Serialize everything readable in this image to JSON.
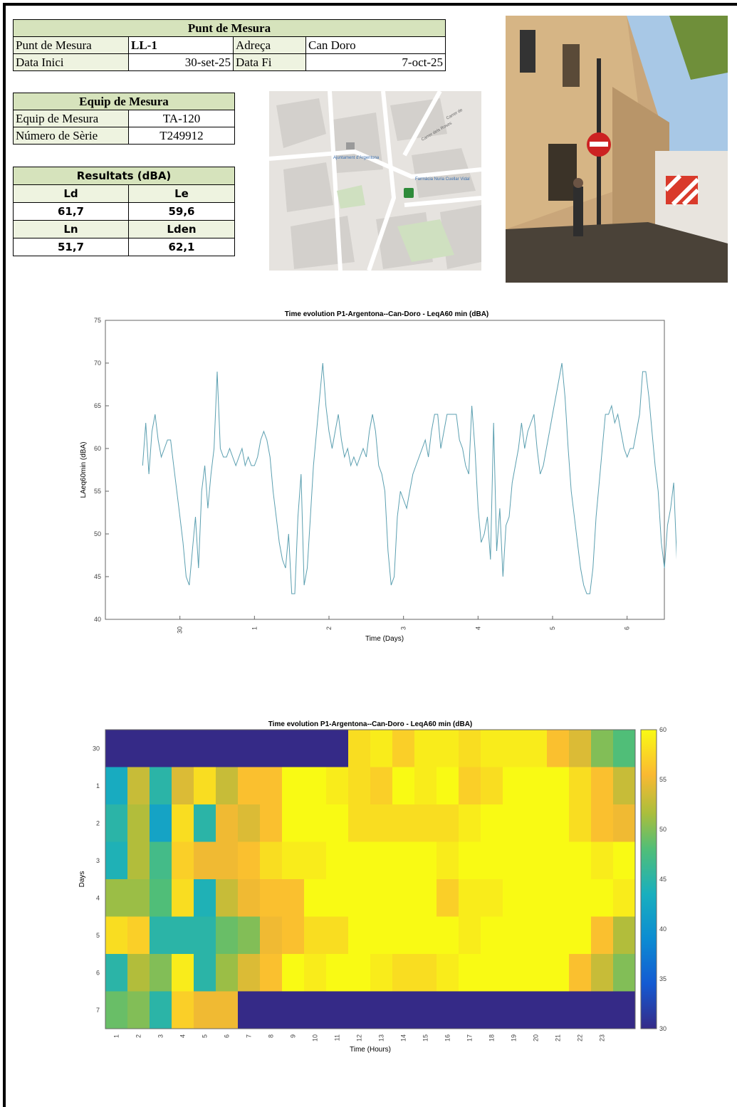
{
  "punt": {
    "header": "Punt de Mesura",
    "l_punt": "Punt de Mesura",
    "v_punt": "LL-1",
    "l_adreca": "Adreça",
    "v_adreca": "Can Doro",
    "l_inici": "Data Inici",
    "v_inici": "30-set-25",
    "l_fi": "Data Fi",
    "v_fi": "7-oct-25"
  },
  "equip": {
    "header": "Equip de Mesura",
    "l_equip": "Equip de Mesura",
    "v_equip": "TA-120",
    "l_serie": "Número de Sèrie",
    "v_serie": "T249912"
  },
  "resultats": {
    "header": "Resultats (dBA)",
    "ld_label": "Ld",
    "le_label": "Le",
    "ld": "61,7",
    "le": "59,6",
    "ln_label": "Ln",
    "lden_label": "Lden",
    "ln": "51,7",
    "lden": "62,1"
  },
  "map": {
    "labels": [
      "Ajuntament d'Argentona",
      "Farmàcia Nuria Cuellar Vidal",
      "Carrer dels Roses",
      "Carrer de"
    ]
  },
  "photo": {
    "description": "street-photo"
  },
  "chart_data": [
    {
      "type": "line",
      "title": "Time evolution P1-Argentona--Can-Doro - LeqA60 min (dBA)",
      "xlabel": "Time (Days)",
      "ylabel": "LAeq60min (dBA)",
      "ylim": [
        40,
        75
      ],
      "yticks": [
        40,
        45,
        50,
        55,
        60,
        65,
        70,
        75
      ],
      "xlim": [
        29,
        36.5
      ],
      "xticks": [
        30,
        31,
        32,
        33,
        34,
        35,
        36
      ],
      "xtick_labels": [
        "30",
        "1",
        "2",
        "3",
        "4",
        "5",
        "6"
      ],
      "color": "#5b9fb0",
      "x_start": 29.5,
      "x_step": 0.04167,
      "values": [
        58,
        63,
        57,
        62,
        64,
        61,
        59,
        60,
        61,
        61,
        58,
        55,
        52,
        49,
        45,
        44,
        48,
        52,
        46,
        55,
        58,
        53,
        57,
        60,
        69,
        60,
        59,
        59,
        60,
        59,
        58,
        59,
        60,
        58,
        59,
        58,
        58,
        59,
        61,
        62,
        61,
        59,
        55,
        52,
        49,
        47,
        46,
        50,
        43,
        43,
        52,
        57,
        44,
        46,
        52,
        58,
        62,
        66,
        70,
        65,
        62,
        60,
        62,
        64,
        61,
        59,
        60,
        58,
        59,
        58,
        59,
        60,
        59,
        62,
        64,
        62,
        58,
        57,
        55,
        48,
        44,
        45,
        52,
        55,
        54,
        53,
        55,
        57,
        58,
        59,
        60,
        61,
        59,
        62,
        64,
        64,
        60,
        62,
        64,
        64,
        64,
        64,
        61,
        60,
        58,
        57,
        65,
        60,
        53,
        49,
        50,
        52,
        47,
        63,
        48,
        53,
        45,
        51,
        52,
        56,
        58,
        60,
        63,
        60,
        62,
        63,
        64,
        60,
        57,
        58,
        60,
        62,
        64,
        66,
        68,
        70,
        66,
        60,
        55,
        52,
        49,
        46,
        44,
        43,
        43,
        46,
        52,
        56,
        60,
        64,
        64,
        65,
        63,
        64,
        62,
        60,
        59,
        60,
        60,
        62,
        64,
        69,
        69,
        66,
        62,
        58,
        55,
        49,
        46,
        51,
        53,
        56,
        47,
        55,
        56,
        61,
        68,
        60,
        59,
        61,
        59,
        57,
        56,
        60,
        60,
        61,
        61,
        63,
        56,
        53,
        50,
        48,
        49,
        47,
        45,
        52,
        56,
        54
      ]
    },
    {
      "type": "heatmap",
      "title": "Time evolution P1-Argentona--Can-Doro - LeqA60 min (dBA)",
      "xlabel": "Time (Hours)",
      "ylabel": "Days",
      "x_labels": [
        "1",
        "2",
        "3",
        "4",
        "5",
        "6",
        "7",
        "8",
        "9",
        "10",
        "11",
        "12",
        "13",
        "14",
        "15",
        "16",
        "17",
        "18",
        "19",
        "20",
        "21",
        "22",
        "23"
      ],
      "y_labels": [
        "30",
        "1",
        "2",
        "3",
        "4",
        "5",
        "6",
        "7"
      ],
      "colorbar_range": [
        30,
        60
      ],
      "colorbar_ticks": [
        30,
        35,
        40,
        45,
        50,
        55,
        60
      ],
      "rows": [
        [
          30,
          30,
          30,
          30,
          30,
          30,
          30,
          30,
          30,
          30,
          30,
          58,
          59,
          57,
          59,
          59,
          58,
          59,
          59,
          59,
          56,
          54,
          50,
          48
        ],
        [
          43,
          53,
          45,
          54,
          58,
          53,
          56,
          56,
          60,
          60,
          59,
          58,
          57,
          60,
          59,
          60,
          57,
          58,
          60,
          60,
          60,
          58,
          56,
          53
        ],
        [
          45,
          52,
          42,
          58,
          45,
          55,
          54,
          56,
          60,
          60,
          60,
          58,
          58,
          58,
          58,
          58,
          59,
          60,
          60,
          60,
          60,
          58,
          56,
          55
        ],
        [
          44,
          52,
          47,
          57,
          55,
          55,
          56,
          58,
          59,
          59,
          60,
          60,
          60,
          60,
          60,
          59,
          60,
          60,
          60,
          60,
          60,
          60,
          59,
          60
        ],
        [
          51,
          51,
          48,
          58,
          44,
          53,
          55,
          56,
          56,
          60,
          60,
          60,
          60,
          60,
          60,
          57,
          59,
          59,
          60,
          60,
          60,
          60,
          60,
          59
        ],
        [
          58,
          57,
          45,
          45,
          45,
          49,
          50,
          55,
          56,
          58,
          58,
          60,
          60,
          60,
          60,
          60,
          59,
          60,
          60,
          60,
          60,
          60,
          56,
          52
        ],
        [
          45,
          52,
          50,
          59,
          45,
          51,
          54,
          56,
          60,
          59,
          60,
          60,
          59,
          58,
          58,
          59,
          60,
          60,
          60,
          60,
          60,
          56,
          53,
          50
        ],
        [
          49,
          50,
          45,
          57,
          55,
          55,
          30,
          30,
          30,
          30,
          30,
          30,
          30,
          30,
          30,
          30,
          30,
          30,
          30,
          30,
          30,
          30,
          30,
          30
        ]
      ]
    }
  ]
}
